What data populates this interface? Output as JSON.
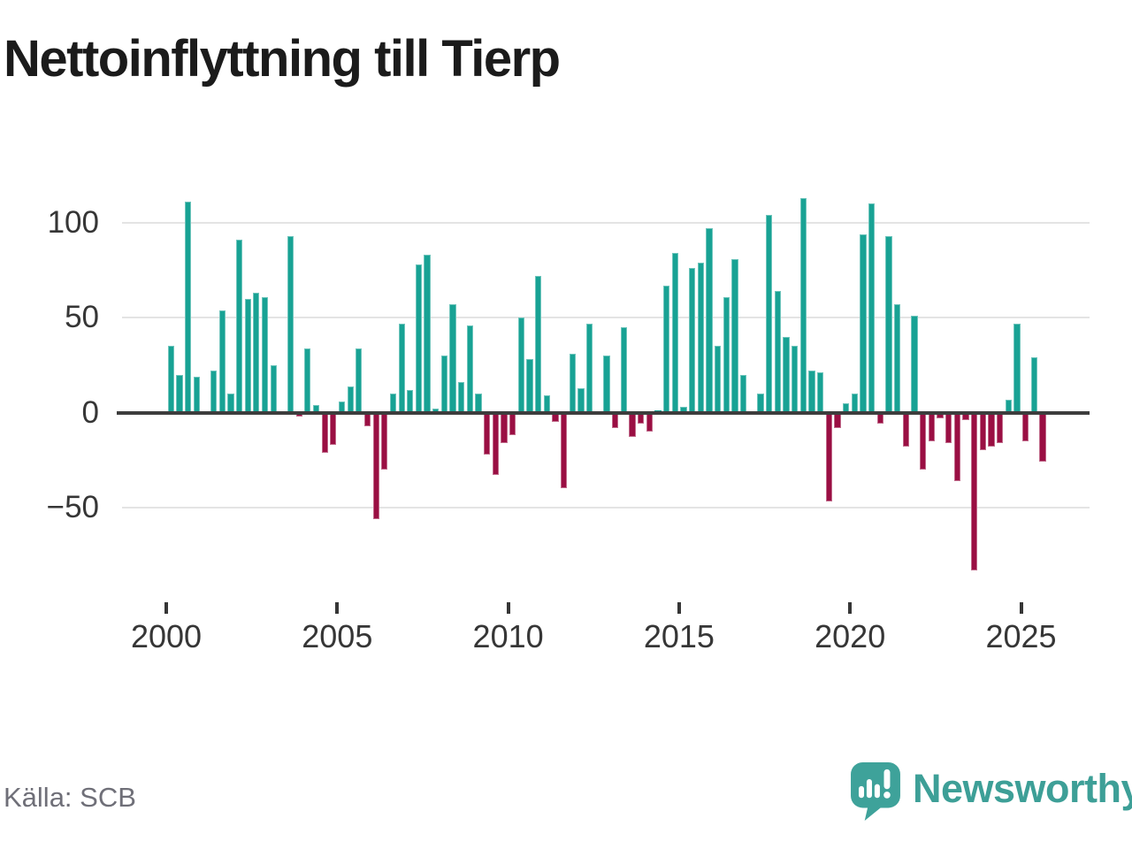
{
  "title": "Nettoinflyttning till Tierp",
  "source": "Källa: SCB",
  "branding": {
    "name": "Newsworthy",
    "icon": "newsworthy-speech-bubble-chart-icon",
    "color": "#3ea29a",
    "text_color": "#3d9f97"
  },
  "colors": {
    "positive_bar": "#18a294",
    "negative_bar": "#9a0f43",
    "gridline": "#e4e4e4",
    "zero_axis": "#3d3d3d",
    "tick_text": "#363636",
    "title_text": "#1b1b1b",
    "source_text": "#6f6f78"
  },
  "chart_data": {
    "type": "bar",
    "title": "Nettoinflyttning till Tierp",
    "xlabel": "",
    "ylabel": "",
    "frequency": "quarterly",
    "x_start": "2000-Q1",
    "x_end": "2025-Q3",
    "ylim": [
      -90,
      118
    ],
    "y_ticks": [
      100,
      50,
      0,
      -50
    ],
    "y_tick_labels": [
      "100",
      "50",
      "0",
      "−50"
    ],
    "x_ticks": [
      2000,
      2005,
      2010,
      2015,
      2020,
      2025
    ],
    "x_tick_labels": [
      "2000",
      "2005",
      "2010",
      "2015",
      "2020",
      "2025"
    ],
    "grid": "horizontal",
    "legend": "none",
    "series": [
      {
        "year": 2000,
        "q": [
          35,
          20,
          111,
          19
        ]
      },
      {
        "year": 2001,
        "q": [
          0,
          22,
          54,
          10
        ]
      },
      {
        "year": 2002,
        "q": [
          91,
          60,
          63,
          61
        ]
      },
      {
        "year": 2003,
        "q": [
          25,
          0,
          93,
          -2
        ]
      },
      {
        "year": 2004,
        "q": [
          34,
          4,
          -21,
          -17
        ]
      },
      {
        "year": 2005,
        "q": [
          6,
          14,
          34,
          -7
        ]
      },
      {
        "year": 2006,
        "q": [
          -56,
          -30,
          10,
          47
        ]
      },
      {
        "year": 2007,
        "q": [
          12,
          78,
          83,
          2
        ]
      },
      {
        "year": 2008,
        "q": [
          30,
          57,
          16,
          46
        ]
      },
      {
        "year": 2009,
        "q": [
          10,
          -22,
          -33,
          -16
        ]
      },
      {
        "year": 2010,
        "q": [
          -12,
          50,
          28,
          72
        ]
      },
      {
        "year": 2011,
        "q": [
          9,
          -5,
          -40,
          31
        ]
      },
      {
        "year": 2012,
        "q": [
          13,
          47,
          0,
          30
        ]
      },
      {
        "year": 2013,
        "q": [
          -8,
          45,
          -13,
          -6
        ]
      },
      {
        "year": 2014,
        "q": [
          -10,
          1,
          67,
          84
        ]
      },
      {
        "year": 2015,
        "q": [
          3,
          76,
          79,
          97
        ]
      },
      {
        "year": 2016,
        "q": [
          35,
          61,
          81,
          20
        ]
      },
      {
        "year": 2017,
        "q": [
          0,
          10,
          104,
          64
        ]
      },
      {
        "year": 2018,
        "q": [
          40,
          35,
          113,
          22
        ]
      },
      {
        "year": 2019,
        "q": [
          21,
          -47,
          -8,
          5
        ]
      },
      {
        "year": 2020,
        "q": [
          10,
          94,
          110,
          -6
        ]
      },
      {
        "year": 2021,
        "q": [
          93,
          57,
          -18,
          51
        ]
      },
      {
        "year": 2022,
        "q": [
          -30,
          -15,
          -3,
          -16
        ]
      },
      {
        "year": 2023,
        "q": [
          -36,
          -4,
          -83,
          -20
        ]
      },
      {
        "year": 2024,
        "q": [
          -18,
          -16,
          7,
          47
        ]
      },
      {
        "year": 2025,
        "q": [
          -15,
          29,
          -26
        ]
      }
    ]
  }
}
